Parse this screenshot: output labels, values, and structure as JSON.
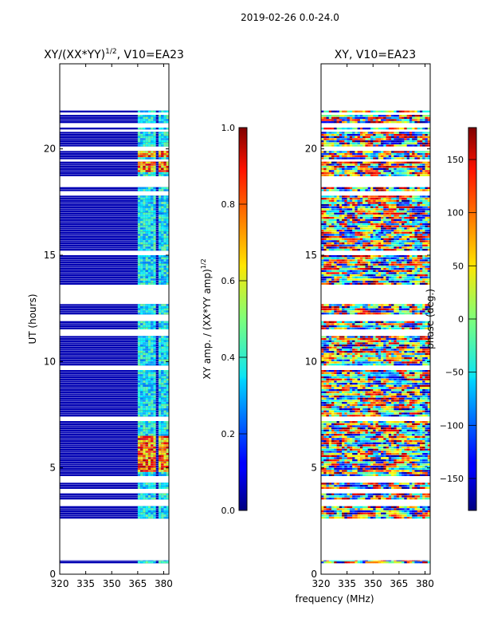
{
  "figure_title": "2019-02-26 0.0-24.0",
  "chart_data": [
    {
      "type": "heatmap",
      "title": "XY/(XX*YY)^{1/2}, V10=EA23",
      "title_main": "XY/(XX*YY)",
      "title_sup": "1/2",
      "title_tail": ", V10=EA23",
      "xlabel": "",
      "ylabel": "UT (hours)",
      "xlim": [
        320,
        383
      ],
      "ylim": [
        0,
        24
      ],
      "xticks": [
        320,
        335,
        350,
        365,
        380
      ],
      "yticks": [
        0,
        5,
        10,
        15,
        20
      ],
      "xtick_labels": [
        "320",
        "335",
        "350",
        "365",
        "380"
      ],
      "ytick_labels": [
        "0",
        "5",
        "10",
        "15",
        "20"
      ],
      "colorbar": {
        "label": "XY amp. / (XX*YY amp)^{1/2}",
        "label_main": "XY amp. / (XX*YY amp)",
        "label_sup": "1/2",
        "range": [
          0,
          1
        ],
        "ticks": [
          0.0,
          0.2,
          0.4,
          0.6,
          0.8,
          1.0
        ],
        "tick_labels": [
          "0.0",
          "0.2",
          "0.4",
          "0.6",
          "0.8",
          "1.0"
        ]
      }
    },
    {
      "type": "heatmap",
      "title": "XY, V10=EA23",
      "xlabel": "frequency (MHz)",
      "ylabel": "",
      "xlim": [
        320,
        383
      ],
      "ylim": [
        0,
        24
      ],
      "xticks": [
        320,
        335,
        350,
        365,
        380
      ],
      "yticks": [
        0,
        5,
        10,
        15,
        20
      ],
      "xtick_labels": [
        "320",
        "335",
        "350",
        "365",
        "380"
      ],
      "ytick_labels": [
        "0",
        "5",
        "10",
        "15",
        "20"
      ],
      "colorbar": {
        "label": "phase (deg.)",
        "range": [
          -180,
          180
        ],
        "ticks": [
          -150,
          -100,
          -50,
          0,
          50,
          100,
          150
        ],
        "tick_labels": [
          "−150",
          "−100",
          "−50",
          "0",
          "50",
          "100",
          "150"
        ]
      }
    }
  ],
  "data_blocks_hours": [
    [
      0.5,
      0.65
    ],
    [
      2.6,
      3.2
    ],
    [
      3.5,
      3.8
    ],
    [
      4.0,
      4.3
    ],
    [
      4.6,
      7.2
    ],
    [
      7.4,
      9.6
    ],
    [
      9.8,
      11.2
    ],
    [
      11.5,
      11.9
    ],
    [
      12.2,
      12.7
    ],
    [
      13.6,
      15.0
    ],
    [
      15.2,
      17.8
    ],
    [
      18.0,
      18.2
    ],
    [
      18.7,
      19.4
    ],
    [
      19.5,
      19.9
    ],
    [
      20.1,
      20.8
    ],
    [
      20.9,
      21.0
    ],
    [
      21.2,
      21.6
    ],
    [
      21.7,
      21.8
    ]
  ],
  "amp_enhanced_bands_mhz": [
    [
      365,
      372
    ],
    [
      373,
      376
    ],
    [
      377,
      383
    ]
  ],
  "amp_high_hours": [
    [
      4.8,
      6.5
    ],
    [
      18.9,
      19.4
    ],
    [
      19.6,
      19.9
    ]
  ],
  "amp_background": 0.05
}
